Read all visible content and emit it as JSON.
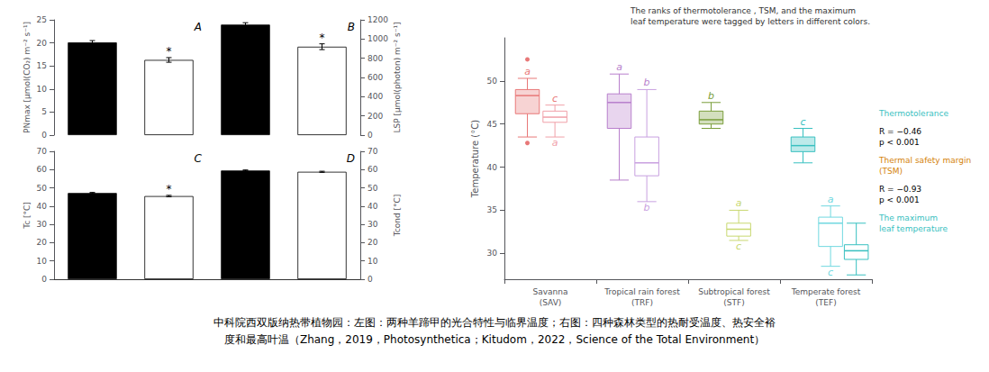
{
  "chart_data": [
    {
      "type": "bar",
      "title": "A",
      "ylabel": "PNmax [μmol(CO₂) m⁻² s⁻¹]",
      "categories": [
        null,
        null
      ],
      "values": [
        20.1,
        16.3
      ],
      "errors": [
        0.4,
        0.5
      ],
      "colors": [
        "black",
        "white"
      ],
      "star_labels": [
        null,
        "*"
      ],
      "ylim": [
        0,
        25
      ],
      "yticks": [
        0,
        5,
        10,
        15,
        20,
        25
      ],
      "grid": false
    },
    {
      "type": "bar",
      "title": "B",
      "ylabel": "LSP [μmol(photon) m⁻² s⁻¹]",
      "categories": [
        null,
        null
      ],
      "values": [
        1150,
        920
      ],
      "errors": [
        20,
        30
      ],
      "colors": [
        "black",
        "white"
      ],
      "star_labels": [
        null,
        "*"
      ],
      "ylim": [
        0,
        1200
      ],
      "yticks": [
        0,
        200,
        400,
        600,
        800,
        1000,
        1200
      ],
      "grid": false
    },
    {
      "type": "bar",
      "title": "C",
      "ylabel": "Tc [°C]",
      "categories": [
        null,
        null
      ],
      "values": [
        47.2,
        45.5
      ],
      "errors": [
        0.3,
        0.4
      ],
      "colors": [
        "black",
        "white"
      ],
      "star_labels": [
        null,
        "*"
      ],
      "ylim": [
        0,
        70
      ],
      "yticks": [
        0,
        10,
        20,
        30,
        40,
        50,
        60,
        70
      ],
      "grid": false
    },
    {
      "type": "bar",
      "title": "D",
      "ylabel": "Tcond [°C]",
      "categories": [
        null,
        null
      ],
      "values": [
        59.5,
        58.8
      ],
      "errors": [
        0.3,
        0.3
      ],
      "colors": [
        "black",
        "white"
      ],
      "star_labels": [
        null,
        null
      ],
      "ylim": [
        0,
        70
      ],
      "yticks": [
        0,
        10,
        20,
        30,
        40,
        50,
        60,
        70
      ],
      "grid": false
    },
    {
      "type": "boxplot",
      "ylabel": "Temperature (°C)",
      "categories": [
        "Savanna\n(SAV)",
        "Tropical rain forest\n(TRF)",
        "Subtropical forest\n(STF)",
        "Temperate forest\n(TEF)"
      ],
      "ylim": [
        27,
        55
      ],
      "yticks": [
        30,
        35,
        40,
        45,
        50
      ],
      "grid": false,
      "series": [
        {
          "colors": [
            "#E87878",
            "#B87FCC",
            "#7A9E3B",
            "#38C0C0"
          ],
          "values": [
            {
              "whislo": 43.5,
              "q1": 46.2,
              "median": 48.3,
              "q3": 49.0,
              "whishi": 50.3,
              "fliers": [
                42.8,
                52.5
              ]
            },
            {
              "whislo": 38.5,
              "q1": 44.5,
              "median": 47.5,
              "q3": 48.5,
              "whishi": 50.8,
              "fliers": []
            },
            {
              "whislo": 44.5,
              "q1": 45.0,
              "median": 45.5,
              "q3": 46.5,
              "whishi": 47.5,
              "fliers": []
            },
            {
              "whislo": 40.5,
              "q1": 41.8,
              "median": 42.5,
              "q3": 43.5,
              "whishi": 44.5,
              "fliers": []
            }
          ],
          "letters_top": {
            "texts": [
              "a",
              "a",
              "b",
              "c"
            ],
            "colors": [
              "#E87878",
              "#B87FCC",
              "#7A9E3B",
              "#38C0C0"
            ]
          }
        },
        {
          "colors": [
            "#F0A0A8",
            "#C8A0E0",
            "#C8D870",
            "#70D8E0"
          ],
          "values": [
            {
              "whislo": 43.5,
              "q1": 45.2,
              "median": 45.8,
              "q3": 46.5,
              "whishi": 47.2,
              "fliers": []
            },
            {
              "whislo": 36.0,
              "q1": 39.0,
              "median": 40.5,
              "q3": 43.5,
              "whishi": 49.0,
              "fliers": []
            },
            {
              "whislo": 31.5,
              "q1": 32.0,
              "median": 32.8,
              "q3": 33.5,
              "whishi": 35.0,
              "fliers": []
            },
            {
              "whislo": 28.5,
              "q1": 30.8,
              "median": 33.5,
              "q3": 34.2,
              "whishi": 35.5,
              "fliers": []
            }
          ],
          "letters_top": {
            "texts": [
              "c",
              "b",
              "a",
              "a"
            ],
            "colors": [
              "#E87878",
              "#B87FCC",
              "#C8D870",
              "#70D8E0"
            ]
          },
          "letters_bottom": {
            "texts": [
              "a",
              "b",
              "c",
              "c"
            ],
            "colors": [
              "#F0A0A8",
              "#C8A0E0",
              "#C8D870",
              "#70D8E0"
            ]
          }
        },
        {
          "color": "#38C0C0",
          "values": [
            null,
            null,
            null,
            {
              "whislo": 27.5,
              "q1": 29.3,
              "median": 30.3,
              "q3": 31.0,
              "whishi": 33.5,
              "fliers": []
            }
          ]
        }
      ],
      "note": "The ranks of thermotolerance , TSM, and the maximum\nleaf temperature were tagged by letters in different colors.",
      "annotations": [
        {
          "text": "Thermotolerance",
          "color": "#38C0C0"
        },
        {
          "text": "R = −0.46\np < 0.001"
        },
        {
          "text": "Thermal safety margin\n(TSM)",
          "color": "#D4820A"
        },
        {
          "text": "R = −0.93\np < 0.001"
        },
        {
          "text": "The maximum\nleaf temperature",
          "color": "#38C0C0"
        }
      ]
    }
  ],
  "captions": [
    "中科院西双版纳热带植物园：左图：两种羊蹄甲的光合特性与临界温度；右图：四种森林类型的热耐受温度、热安全裕",
    "度和最高叶温（Zhang，2019，Photosynthetica；Kitudom，2022，Science of the Total Environment）"
  ]
}
